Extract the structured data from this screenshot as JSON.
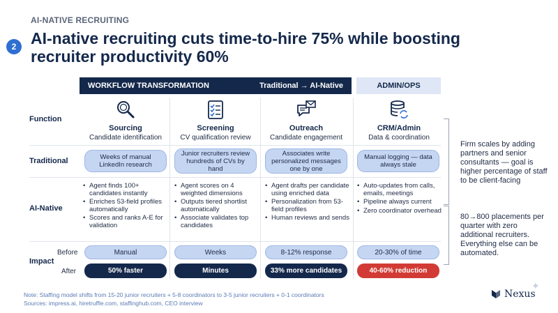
{
  "eyebrow": "AI-NATIVE RECRUITING",
  "step_number": "2",
  "title": "AI-native recruiting cuts time-to-hire 75% while boosting recruiter productivity 60%",
  "header": {
    "workflow_label": "WORKFLOW TRANSFORMATION",
    "workflow_right": "Traditional → AI-Native",
    "admin_label": "ADMIN/OPS"
  },
  "row_labels": {
    "function": "Function",
    "traditional": "Traditional",
    "ai_native": "AI-Native",
    "impact": "Impact",
    "before": "Before",
    "after": "After"
  },
  "columns": [
    {
      "icon": "magnifier-icon",
      "name": "Sourcing",
      "sub": "Candidate identification",
      "traditional": "Weeks of manual LinkedIn research",
      "ai_native": [
        "Agent finds 100+ candidates instantly",
        "Enriches 53-field profiles automatically",
        "Scores and ranks A-E for validation"
      ],
      "before": "Manual",
      "after": "50% faster"
    },
    {
      "icon": "checklist-icon",
      "name": "Screening",
      "sub": "CV qualification review",
      "traditional": "Junior recruiters review hundreds of CVs by hand",
      "ai_native": [
        "Agent scores on 4 weighted dimensions",
        "Outputs tiered shortlist automatically",
        "Associate validates top candidates"
      ],
      "before": "Weeks",
      "after": "Minutes"
    },
    {
      "icon": "chat-mail-icon",
      "name": "Outreach",
      "sub": "Candidate engagement",
      "traditional": "Associates write personalized messages one by one",
      "ai_native": [
        "Agent drafts per candidate using enriched data",
        "Personalization from 53-field profiles",
        "Human reviews and sends"
      ],
      "before": "8-12% response",
      "after": "33% more candidates"
    },
    {
      "icon": "database-sync-icon",
      "name": "CRM/Admin",
      "sub": "Data & coordination",
      "traditional": "Manual logging — data always stale",
      "ai_native": [
        "Auto-updates from calls, emails, meetings",
        "Pipeline always current",
        "Zero coordinator overhead"
      ],
      "before": "20-30% of time",
      "after": "40-60% reduction"
    }
  ],
  "colors": {
    "navy": "#14284b",
    "pill_blue": "#c5d6f3",
    "accent_red": "#d23b35",
    "badge_blue": "#2f6fd1"
  },
  "side_notes": {
    "top": "Firm scales by adding partners and senior consultants — goal is higher percentage of staff to be client-facing",
    "bottom": "80→800 placements per quarter with zero additional recruiters. Everything else can be automated."
  },
  "footer": {
    "note": "Note: Staffing model shifts from 15-20 junior recruiters + 5-8 coordinators to 3-5 junior recruiters + 0-1 coordinators",
    "sources": "Sources: impress.ai, hiretruffle.com, staffinghub.com, CEO interview"
  },
  "logo_text": "Nexus"
}
